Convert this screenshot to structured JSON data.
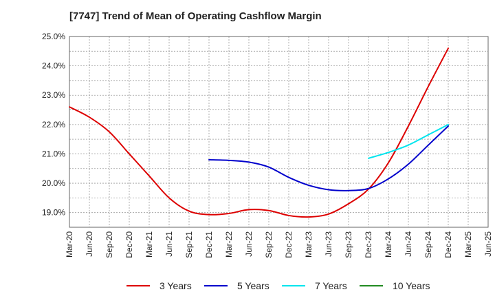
{
  "chart_data": {
    "type": "line",
    "title": "[7747]  Trend of Mean of Operating Cashflow Margin",
    "xlabel": "",
    "ylabel": "",
    "categories": [
      "Mar-20",
      "Jun-20",
      "Sep-20",
      "Dec-20",
      "Mar-21",
      "Jun-21",
      "Sep-21",
      "Dec-21",
      "Mar-22",
      "Jun-22",
      "Sep-22",
      "Dec-22",
      "Mar-23",
      "Jun-23",
      "Sep-23",
      "Dec-23",
      "Mar-24",
      "Jun-24",
      "Sep-24",
      "Dec-24",
      "Mar-25",
      "Jun-25"
    ],
    "y_ticks": [
      "19.0%",
      "20.0%",
      "21.0%",
      "22.0%",
      "23.0%",
      "24.0%",
      "25.0%"
    ],
    "ylim": [
      18.5,
      25.0
    ],
    "grid": true,
    "legend_position": "bottom",
    "series": [
      {
        "name": "3 Years",
        "color": "#dd0000",
        "values": [
          22.6,
          22.25,
          21.75,
          21.0,
          20.25,
          19.5,
          19.05,
          18.93,
          18.97,
          19.1,
          19.07,
          18.9,
          18.85,
          18.95,
          19.3,
          19.8,
          20.7,
          21.95,
          23.3,
          24.6,
          null,
          null
        ]
      },
      {
        "name": "5 Years",
        "color": "#0000cc",
        "values": [
          null,
          null,
          null,
          null,
          null,
          null,
          null,
          20.8,
          20.78,
          20.72,
          20.55,
          20.2,
          19.93,
          19.78,
          19.75,
          19.82,
          20.15,
          20.65,
          21.3,
          21.95,
          null,
          null
        ]
      },
      {
        "name": "7 Years",
        "color": "#00e5ee",
        "values": [
          null,
          null,
          null,
          null,
          null,
          null,
          null,
          null,
          null,
          null,
          null,
          null,
          null,
          null,
          null,
          20.85,
          21.05,
          21.3,
          21.65,
          22.0,
          null,
          null
        ]
      },
      {
        "name": "10 Years",
        "color": "#228b22",
        "values": [
          null,
          null,
          null,
          null,
          null,
          null,
          null,
          null,
          null,
          null,
          null,
          null,
          null,
          null,
          null,
          null,
          null,
          null,
          null,
          null,
          null,
          null
        ]
      }
    ]
  }
}
